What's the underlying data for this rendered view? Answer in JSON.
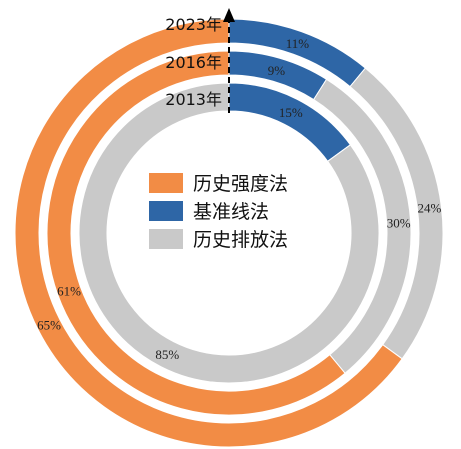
{
  "chart_data": {
    "type": "pie",
    "subtype": "multi-ring donut",
    "colors": {
      "历史强度法": "#F28C45",
      "基准线法": "#2E66A6",
      "历史排放法": "#C9C9C9"
    },
    "legend": [
      "历史强度法",
      "基准线法",
      "历史排放法"
    ],
    "rings": [
      {
        "year": "2023年",
        "values": {
          "历史强度法": 65,
          "基准线法": 11,
          "历史排放法": 24
        },
        "labels": {
          "历史强度法": "65%",
          "基准线法": "11%",
          "历史排放法": "24%"
        }
      },
      {
        "year": "2016年",
        "values": {
          "历史强度法": 61,
          "基准线法": 9,
          "历史排放法": 30
        },
        "labels": {
          "历史强度法": "61%",
          "基准线法": "9%",
          "历史排放法": "30%"
        }
      },
      {
        "year": "2013年",
        "values": {
          "历史强度法": 0,
          "基准线法": 15,
          "历史排放法": 85
        },
        "labels": {
          "基准线法": "15%",
          "历史排放法": "85%"
        }
      }
    ]
  }
}
